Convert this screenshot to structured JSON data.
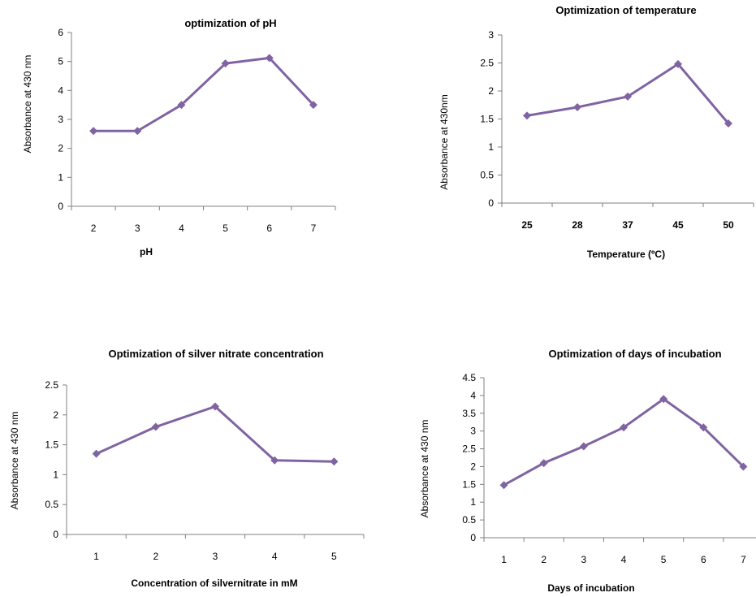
{
  "chart_data": [
    {
      "type": "line",
      "title": "optimization of pH",
      "xlabel": "pH",
      "ylabel": "Absorbance at 430 nm",
      "categories": [
        "2",
        "3",
        "4",
        "5",
        "6",
        "7"
      ],
      "series": [
        {
          "values": [
            2.6,
            2.6,
            3.5,
            4.93,
            5.12,
            3.5
          ]
        }
      ],
      "ylim": [
        0,
        6
      ],
      "yticks": [
        "0",
        "1",
        "2",
        "3",
        "4",
        "5",
        "6"
      ],
      "grid": false,
      "color": "#8064a2",
      "marker": "diamond"
    },
    {
      "type": "line",
      "title": "Optimization of temperature",
      "xlabel": "Temperature (ºC)",
      "ylabel": "Absorbance at 430nm",
      "categories": [
        "25",
        "28",
        "37",
        "45",
        "50"
      ],
      "series": [
        {
          "values": [
            1.56,
            1.71,
            1.9,
            2.48,
            1.42
          ]
        }
      ],
      "ylim": [
        0,
        3
      ],
      "yticks": [
        "0",
        "0.5",
        "1",
        "1.5",
        "2",
        "2.5",
        "3"
      ],
      "grid": false,
      "color": "#8064a2",
      "marker": "diamond"
    },
    {
      "type": "line",
      "title": "Optimization of silver nitrate concentration",
      "xlabel": "Concentration of silvernitrate in mM",
      "ylabel": "Absorbance at 430 nm",
      "categories": [
        "1",
        "2",
        "3",
        "4",
        "5"
      ],
      "series": [
        {
          "values": [
            1.35,
            1.8,
            2.14,
            1.24,
            1.22
          ]
        }
      ],
      "ylim": [
        0,
        2.5
      ],
      "yticks": [
        "0",
        "0.5",
        "1",
        "1.5",
        "2",
        "2.5"
      ],
      "grid": false,
      "color": "#8064a2",
      "marker": "diamond"
    },
    {
      "type": "line",
      "title": "Optimization of days of incubation",
      "xlabel": "Days of incubation",
      "ylabel": "Absorbance at 430 nm",
      "categories": [
        "1",
        "2",
        "3",
        "4",
        "5",
        "6",
        "7"
      ],
      "series": [
        {
          "values": [
            1.48,
            2.1,
            2.57,
            3.1,
            3.9,
            3.1,
            2.0
          ]
        }
      ],
      "ylim": [
        0,
        4.5
      ],
      "yticks": [
        "0",
        "0.5",
        "1",
        "1.5",
        "2",
        "2.5",
        "3",
        "3.5",
        "4",
        "4.5"
      ],
      "grid": false,
      "color": "#8064a2",
      "marker": "diamond"
    }
  ]
}
